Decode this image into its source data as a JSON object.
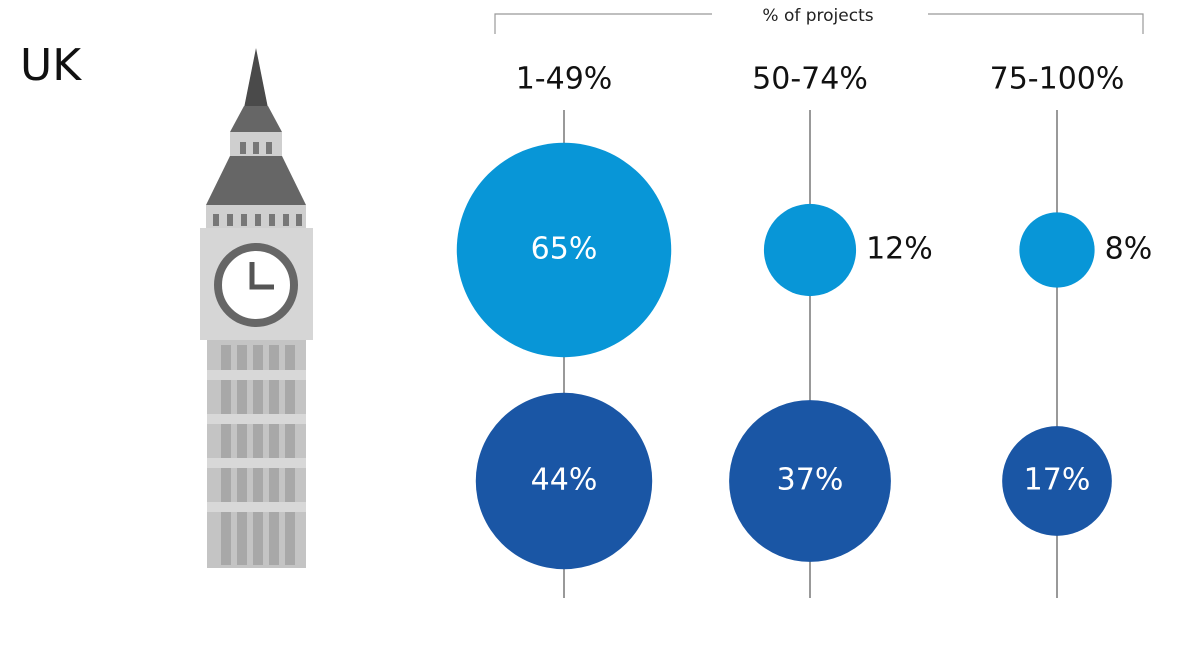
{
  "chart_data": {
    "type": "bubble",
    "title": "UK",
    "x_label": "% of projects",
    "categories": [
      "1-49%",
      "50-74%",
      "75-100%"
    ],
    "series": [
      {
        "color": "#0896d7",
        "values": [
          65,
          12,
          8
        ],
        "value_labels": [
          "65%",
          "12%",
          "8%"
        ]
      },
      {
        "color": "#1a56a5",
        "values": [
          44,
          37,
          17
        ],
        "value_labels": [
          "44%",
          "37%",
          "17%"
        ]
      }
    ]
  }
}
